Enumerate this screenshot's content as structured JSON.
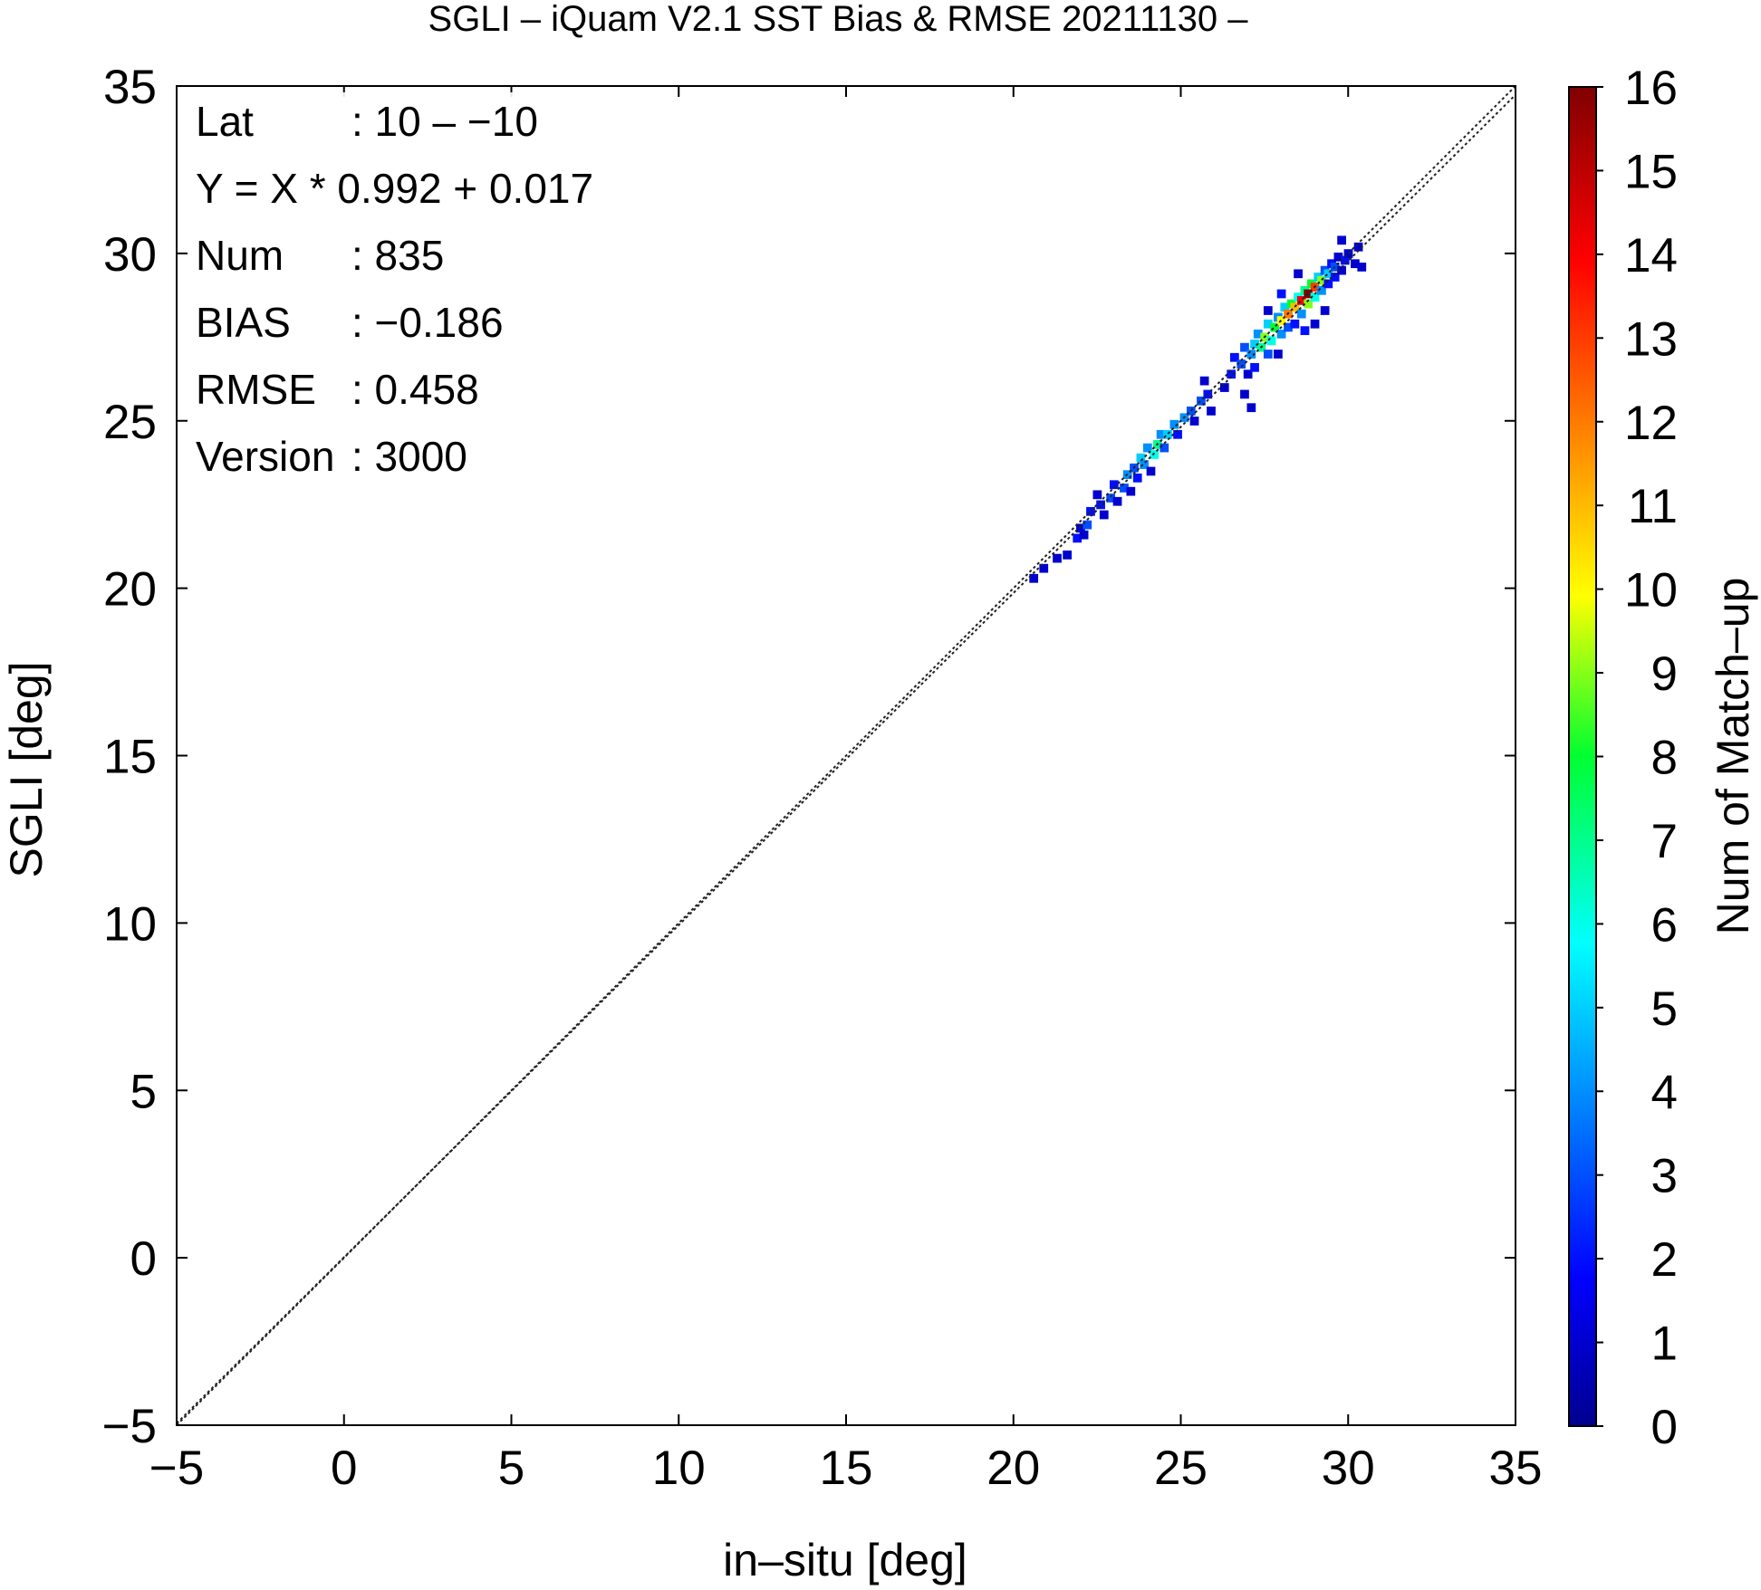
{
  "chart_data": {
    "type": "heatmap",
    "title": "SGLI – iQuam V2.1 SST Bias & RMSE 20211130 –",
    "xlabel": "in–situ [deg]",
    "ylabel": "SGLI [deg]",
    "xlim": [
      -5,
      35
    ],
    "ylim": [
      -5,
      35
    ],
    "x_ticks": [
      "−5",
      "0",
      "5",
      "10",
      "15",
      "20",
      "25",
      "30",
      "35"
    ],
    "y_ticks": [
      "−5",
      "0",
      "5",
      "10",
      "15",
      "20",
      "25",
      "30",
      "35"
    ],
    "x_tick_values": [
      -5,
      0,
      5,
      10,
      15,
      20,
      25,
      30,
      35
    ],
    "y_tick_values": [
      -5,
      0,
      5,
      10,
      15,
      20,
      25,
      30,
      35
    ],
    "colorbar": {
      "label": "Num of Match–up",
      "min": 0,
      "max": 16,
      "ticks": [
        "0",
        "1",
        "2",
        "3",
        "4",
        "5",
        "6",
        "7",
        "8",
        "9",
        "10",
        "11",
        "12",
        "13",
        "14",
        "15",
        "16"
      ]
    },
    "reference_lines": [
      {
        "name": "1:1",
        "slope": 1.0,
        "intercept": 0.0,
        "style": "dotted"
      },
      {
        "name": "regression",
        "slope": 0.992,
        "intercept": 0.017,
        "style": "dotted"
      }
    ],
    "bin_size": 0.25,
    "cells": [
      [
        20.6,
        20.3,
        1
      ],
      [
        20.9,
        20.6,
        1
      ],
      [
        21.3,
        20.9,
        1
      ],
      [
        21.6,
        21.0,
        1
      ],
      [
        21.9,
        21.5,
        2
      ],
      [
        22.0,
        21.8,
        1
      ],
      [
        22.2,
        21.9,
        3
      ],
      [
        22.3,
        22.3,
        2
      ],
      [
        22.1,
        21.6,
        1
      ],
      [
        22.6,
        22.5,
        2
      ],
      [
        22.7,
        22.2,
        1
      ],
      [
        22.5,
        22.8,
        1
      ],
      [
        22.9,
        22.7,
        3
      ],
      [
        23.0,
        23.1,
        2
      ],
      [
        23.1,
        22.6,
        1
      ],
      [
        23.3,
        23.0,
        3
      ],
      [
        23.4,
        23.4,
        4
      ],
      [
        23.5,
        22.9,
        1
      ],
      [
        23.6,
        23.6,
        3
      ],
      [
        23.7,
        23.3,
        2
      ],
      [
        23.8,
        23.9,
        5
      ],
      [
        23.9,
        23.7,
        4
      ],
      [
        24.0,
        24.2,
        4
      ],
      [
        24.1,
        23.5,
        1
      ],
      [
        24.2,
        24.0,
        6
      ],
      [
        24.3,
        24.3,
        7
      ],
      [
        24.4,
        24.6,
        4
      ],
      [
        24.5,
        24.2,
        3
      ],
      [
        24.6,
        24.6,
        5
      ],
      [
        24.8,
        24.9,
        4
      ],
      [
        24.9,
        24.6,
        2
      ],
      [
        25.1,
        25.1,
        4
      ],
      [
        25.3,
        25.3,
        3
      ],
      [
        25.4,
        25.0,
        1
      ],
      [
        25.6,
        25.6,
        3
      ],
      [
        25.8,
        25.8,
        2
      ],
      [
        25.9,
        25.3,
        1
      ],
      [
        25.7,
        26.2,
        1
      ],
      [
        26.3,
        26.0,
        1
      ],
      [
        26.5,
        26.4,
        2
      ],
      [
        26.6,
        26.9,
        2
      ],
      [
        26.8,
        26.7,
        3
      ],
      [
        26.9,
        25.8,
        1
      ],
      [
        27.1,
        25.4,
        1
      ],
      [
        26.9,
        27.2,
        3
      ],
      [
        27.0,
        26.4,
        1
      ],
      [
        27.1,
        27.0,
        4
      ],
      [
        27.2,
        27.3,
        5
      ],
      [
        27.3,
        27.6,
        4
      ],
      [
        27.4,
        27.2,
        7
      ],
      [
        27.5,
        27.5,
        9
      ],
      [
        27.6,
        27.0,
        3
      ],
      [
        27.6,
        27.9,
        5
      ],
      [
        27.7,
        27.4,
        6
      ],
      [
        27.8,
        27.8,
        8
      ],
      [
        27.9,
        28.1,
        4
      ],
      [
        28.0,
        27.6,
        4
      ],
      [
        28.0,
        28.0,
        10
      ],
      [
        28.1,
        28.4,
        5
      ],
      [
        28.2,
        27.8,
        3
      ],
      [
        28.2,
        28.2,
        12
      ],
      [
        28.3,
        28.5,
        8
      ],
      [
        28.4,
        27.9,
        2
      ],
      [
        28.4,
        28.4,
        11
      ],
      [
        28.5,
        28.7,
        6
      ],
      [
        28.6,
        28.2,
        4
      ],
      [
        28.6,
        28.6,
        14
      ],
      [
        28.7,
        28.9,
        7
      ],
      [
        28.8,
        28.5,
        9
      ],
      [
        28.8,
        28.8,
        16
      ],
      [
        28.9,
        29.1,
        8
      ],
      [
        29.0,
        28.7,
        6
      ],
      [
        29.0,
        29.0,
        13
      ],
      [
        29.1,
        29.3,
        5
      ],
      [
        29.2,
        28.9,
        4
      ],
      [
        29.2,
        29.2,
        9
      ],
      [
        29.3,
        29.5,
        3
      ],
      [
        29.4,
        29.1,
        2
      ],
      [
        29.4,
        29.4,
        5
      ],
      [
        29.5,
        29.7,
        2
      ],
      [
        29.6,
        29.3,
        2
      ],
      [
        29.6,
        29.6,
        3
      ],
      [
        29.7,
        29.9,
        1
      ],
      [
        29.8,
        29.5,
        1
      ],
      [
        29.9,
        29.8,
        2
      ],
      [
        30.0,
        30.0,
        1
      ],
      [
        30.2,
        29.7,
        1
      ],
      [
        30.3,
        30.2,
        1
      ],
      [
        30.4,
        29.6,
        1
      ],
      [
        29.8,
        30.4,
        1
      ],
      [
        28.5,
        29.4,
        1
      ],
      [
        28.0,
        28.8,
        2
      ],
      [
        27.6,
        28.3,
        1
      ],
      [
        29.0,
        27.9,
        1
      ],
      [
        29.3,
        28.3,
        1
      ],
      [
        28.7,
        27.7,
        2
      ],
      [
        27.9,
        27.0,
        1
      ],
      [
        27.2,
        26.6,
        2
      ]
    ],
    "annotations": [
      {
        "key": "Lat",
        "value": ": 10 – −10"
      },
      {
        "key": "Y = X * 0.992 + 0.017",
        "value": ""
      },
      {
        "key": "Num",
        "value": ": 835"
      },
      {
        "key": "BIAS",
        "value": ": −0.186"
      },
      {
        "key": "RMSE",
        "value": ": 0.458"
      },
      {
        "key": "Version",
        "value": ": 3000"
      }
    ],
    "grid": false
  }
}
